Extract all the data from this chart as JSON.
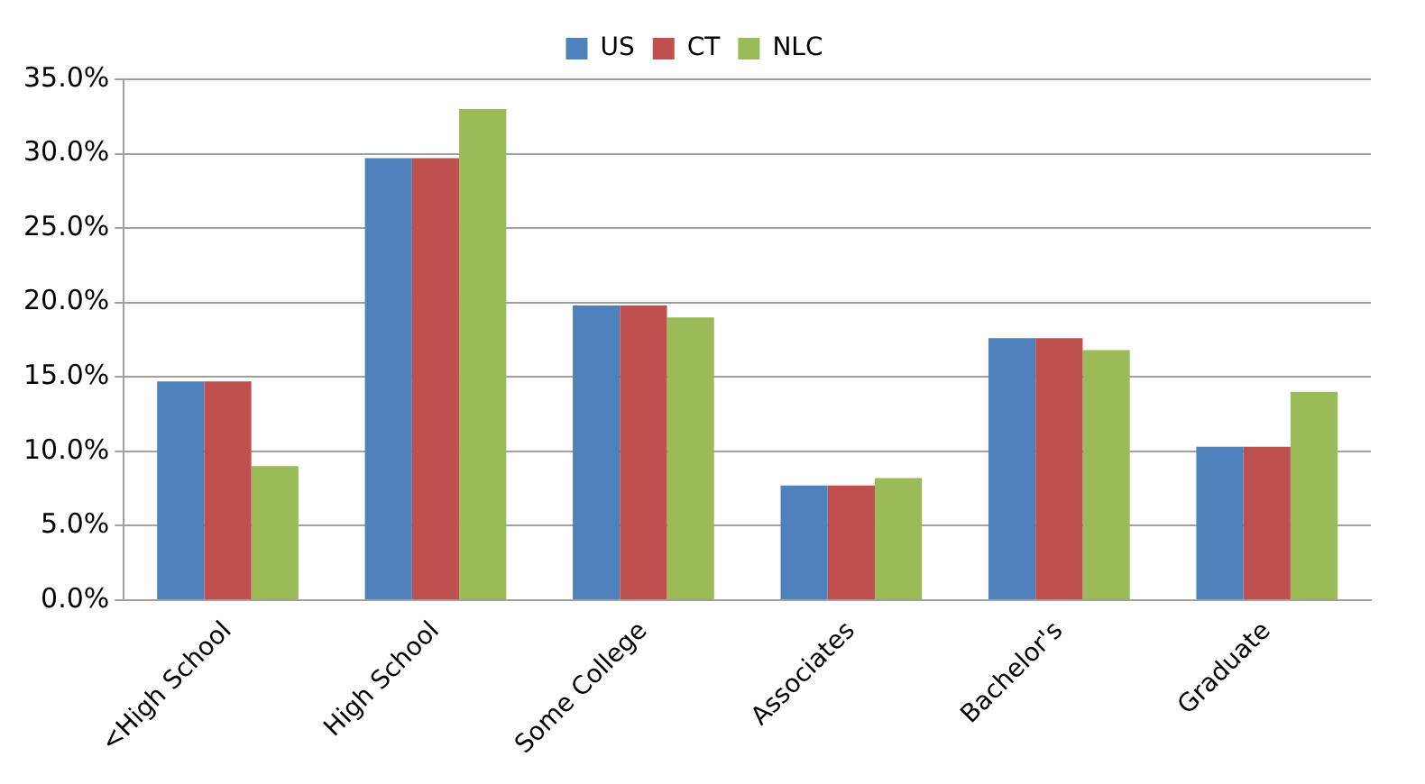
{
  "chart_data": {
    "type": "bar",
    "categories": [
      "<High School",
      "High School",
      "Some College",
      "Associates",
      "Bachelor's",
      "Graduate"
    ],
    "series": [
      {
        "name": "US",
        "color": "#4f81bd",
        "values": [
          14.7,
          29.7,
          19.8,
          7.7,
          17.6,
          10.3
        ]
      },
      {
        "name": "CT",
        "color": "#c0504d",
        "values": [
          14.7,
          29.7,
          19.8,
          7.7,
          17.6,
          10.3
        ]
      },
      {
        "name": "NLC",
        "color": "#9bbb59",
        "values": [
          9.0,
          33.0,
          19.0,
          8.2,
          16.8,
          14.0
        ]
      }
    ],
    "ylim": [
      0,
      35
    ],
    "yticks": [
      {
        "value": 0,
        "label": "0.0%"
      },
      {
        "value": 5,
        "label": "5.0%"
      },
      {
        "value": 10,
        "label": "10.0%"
      },
      {
        "value": 15,
        "label": "15.0%"
      },
      {
        "value": 20,
        "label": "20.0%"
      },
      {
        "value": 25,
        "label": "25.0%"
      },
      {
        "value": 30,
        "label": "30.0%"
      },
      {
        "value": 35,
        "label": "35.0%"
      }
    ],
    "grid": "y",
    "legend": "top"
  }
}
